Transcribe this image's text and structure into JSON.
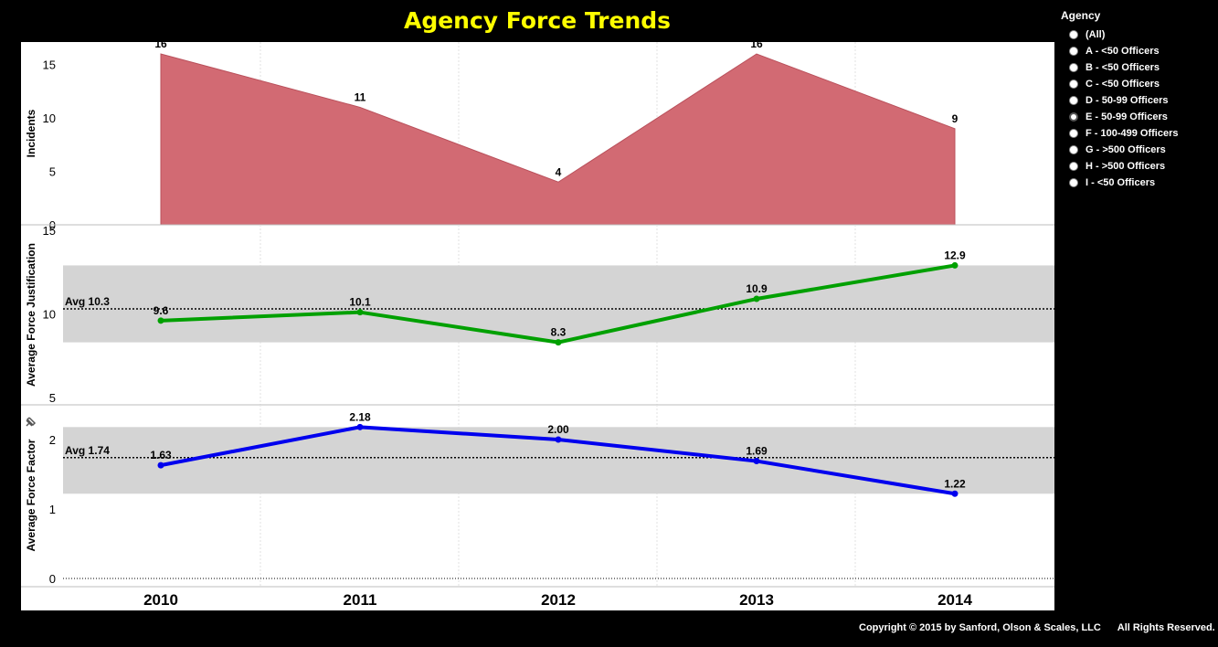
{
  "title": "Agency Force Trends",
  "legend": {
    "title": "Agency",
    "options": [
      {
        "label": "(All)",
        "selected": false
      },
      {
        "label": "A - <50 Officers",
        "selected": false
      },
      {
        "label": "B - <50 Officers",
        "selected": false
      },
      {
        "label": "C - <50 Officers",
        "selected": false
      },
      {
        "label": "D - 50-99 Officers",
        "selected": false
      },
      {
        "label": "E - 50-99 Officers",
        "selected": true
      },
      {
        "label": "F - 100-499 Officers",
        "selected": false
      },
      {
        "label": "G - >500 Officers",
        "selected": false
      },
      {
        "label": "H - >500 Officers",
        "selected": false
      },
      {
        "label": "I - <50 Officers",
        "selected": false
      }
    ]
  },
  "copyright": "Copyright © 2015 by Sanford, Olson & Scales, LLC      All Rights Reserved.",
  "colors": {
    "incidents": "#d26a73",
    "justification": "#00a000",
    "factor": "#0000ee",
    "title": "#ffff00",
    "band": "#d4d4d4"
  },
  "chart_data": [
    {
      "type": "area",
      "x": [
        "2010",
        "2011",
        "2012",
        "2013",
        "2014"
      ],
      "values": [
        16,
        11,
        4,
        16,
        9
      ],
      "data_labels": [
        "16",
        "11",
        "4",
        "16",
        "9"
      ],
      "ylabel": "Incidents",
      "ylim": [
        0,
        16.5
      ],
      "yticks": [
        0,
        5,
        10,
        15
      ]
    },
    {
      "type": "line",
      "x": [
        "2010",
        "2011",
        "2012",
        "2013",
        "2014"
      ],
      "values": [
        9.6,
        10.1,
        8.3,
        10.9,
        12.9
      ],
      "data_labels": [
        "9.6",
        "10.1",
        "8.3",
        "10.9",
        "12.9"
      ],
      "ylabel": "Average Force Justification",
      "ylim": [
        4.8,
        15
      ],
      "yticks": [
        5,
        10,
        15
      ],
      "reference_line": {
        "label": "Avg 10.3",
        "value": 10.3
      },
      "band": [
        8.3,
        12.9
      ]
    },
    {
      "type": "line",
      "x": [
        "2010",
        "2011",
        "2012",
        "2013",
        "2014"
      ],
      "values": [
        1.63,
        2.18,
        2.0,
        1.69,
        1.22
      ],
      "data_labels": [
        "1.63",
        "2.18",
        "2.00",
        "1.69",
        "1.22"
      ],
      "ylabel": "Average Force Factor",
      "ylim": [
        -0.03,
        2.5
      ],
      "yticks": [
        0,
        1,
        2
      ],
      "reference_line": {
        "label": "Avg 1.74",
        "value": 1.74
      },
      "band": [
        1.22,
        2.18
      ]
    }
  ],
  "x_tick_labels": [
    "2010",
    "2011",
    "2012",
    "2013",
    "2014"
  ]
}
